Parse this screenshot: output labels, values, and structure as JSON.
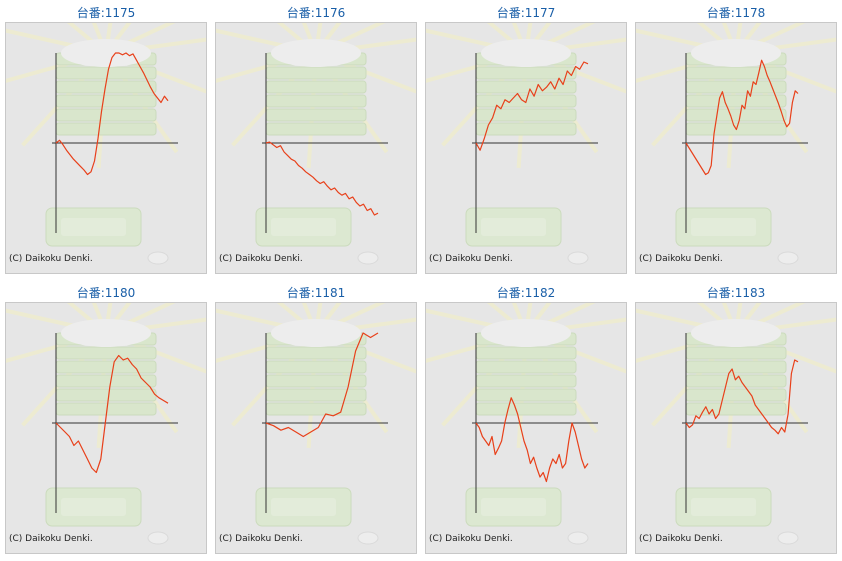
{
  "copyright": "(C) Daikoku Denki.",
  "colors": {
    "line": "#e8401a",
    "axis": "#333333",
    "title": "#1a5fa8",
    "background": "#e6e6e6"
  },
  "chart_data": [
    {
      "type": "line",
      "title": "台番:1175",
      "y": [
        0,
        3,
        -2,
        -8,
        -13,
        -18,
        -22,
        -26,
        -30,
        -35,
        -32,
        -20,
        5,
        35,
        60,
        82,
        95,
        100,
        100,
        98,
        100,
        97,
        99,
        92,
        85,
        78,
        70,
        62,
        55,
        50,
        45,
        52,
        47
      ]
    },
    {
      "type": "line",
      "title": "台番:1176",
      "y": [
        0,
        1,
        -2,
        -5,
        -3,
        -10,
        -14,
        -18,
        -20,
        -25,
        -28,
        -32,
        -35,
        -38,
        -42,
        -45,
        -43,
        -48,
        -52,
        -50,
        -55,
        -58,
        -56,
        -62,
        -60,
        -66,
        -70,
        -68,
        -75,
        -73,
        -80,
        -78
      ]
    },
    {
      "type": "line",
      "title": "台番:1177",
      "y": [
        0,
        -8,
        5,
        20,
        28,
        42,
        38,
        48,
        45,
        50,
        55,
        48,
        45,
        60,
        52,
        65,
        58,
        62,
        68,
        60,
        72,
        65,
        80,
        75,
        85,
        82,
        90,
        88
      ]
    },
    {
      "type": "line",
      "title": "台番:1178",
      "y": [
        0,
        -5,
        -10,
        -15,
        -20,
        -25,
        -30,
        -35,
        -33,
        -25,
        10,
        30,
        50,
        57,
        45,
        38,
        30,
        20,
        15,
        25,
        42,
        38,
        58,
        52,
        68,
        65,
        78,
        92,
        85,
        75,
        68,
        60,
        52,
        44,
        35,
        25,
        18,
        22,
        45,
        58,
        55
      ]
    },
    {
      "type": "line",
      "title": "台番:1180",
      "y": [
        0,
        -5,
        -10,
        -15,
        -25,
        -20,
        -30,
        -40,
        -50,
        -55,
        -40,
        0,
        40,
        68,
        75,
        70,
        72,
        65,
        60,
        50,
        45,
        40,
        32,
        28,
        25,
        22
      ]
    },
    {
      "type": "line",
      "title": "台番:1181",
      "y": [
        0,
        -3,
        -8,
        -5,
        -10,
        -15,
        -10,
        -5,
        10,
        8,
        12,
        40,
        80,
        100,
        95,
        100
      ]
    },
    {
      "type": "line",
      "title": "台番:1182",
      "y": [
        0,
        -5,
        -15,
        -20,
        -25,
        -15,
        -35,
        -28,
        -20,
        0,
        15,
        28,
        20,
        10,
        -5,
        -20,
        -30,
        -45,
        -38,
        -50,
        -60,
        -55,
        -65,
        -50,
        -40,
        -45,
        -35,
        -50,
        -45,
        -20,
        0,
        -10,
        -25,
        -40,
        -50,
        -45
      ]
    },
    {
      "type": "line",
      "title": "台番:1183",
      "y": [
        0,
        -5,
        -2,
        8,
        5,
        12,
        18,
        10,
        15,
        5,
        10,
        25,
        40,
        55,
        60,
        48,
        52,
        45,
        40,
        35,
        30,
        20,
        15,
        10,
        5,
        0,
        -5,
        -8,
        -12,
        -5,
        -10,
        10,
        55,
        70,
        68
      ]
    }
  ]
}
